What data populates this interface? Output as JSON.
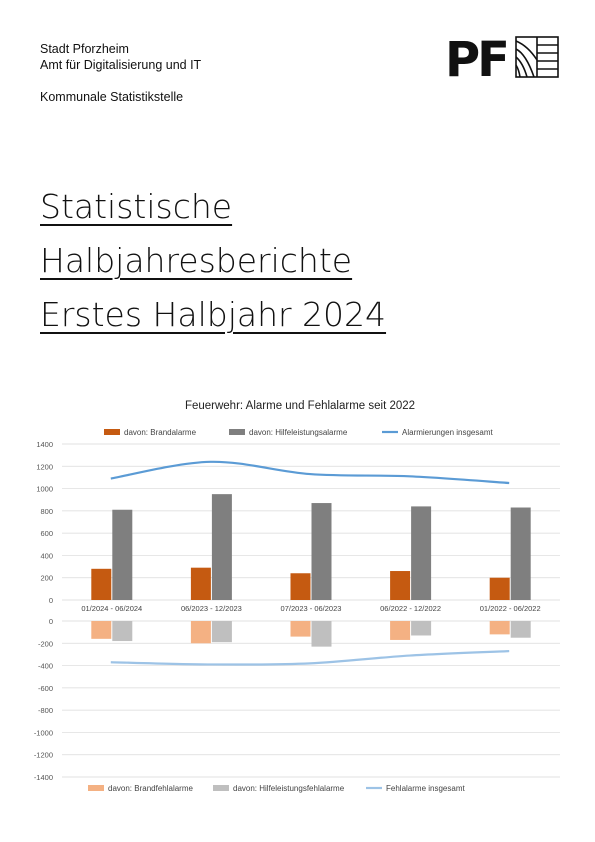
{
  "header": {
    "city": "Stadt Pforzheim",
    "office": "Amt für Digitalisierung und IT",
    "department": "Kommunale Statistikstelle"
  },
  "logo": {
    "text": "PF"
  },
  "title": {
    "line1": "Statistische",
    "line2": "Halbjahresberichte",
    "line3": "Erstes Halbjahr 2024"
  },
  "chart_data": {
    "type": "bar",
    "title": "Feuerwehr: Alarme und Fehlalarme seit 2022",
    "categories": [
      "01/2024 - 06/2024",
      "06/2023 - 12/2023",
      "07/2023 - 06/2023",
      "06/2022 - 12/2022",
      "01/2022 - 06/2022"
    ],
    "ylim": [
      -1400,
      1400
    ],
    "yticks": [
      "1400",
      "1200",
      "1000",
      "800",
      "600",
      "400",
      "200",
      "0",
      "0",
      "-200",
      "-400",
      "-600",
      "-800",
      "-1000",
      "-1200",
      "-1400"
    ],
    "series": [
      {
        "name": "davon: Brandalarme",
        "kind": "bar",
        "color": "#c55a11",
        "values": [
          280,
          290,
          240,
          260,
          200
        ]
      },
      {
        "name": "davon: Hilfeleistungsalarme",
        "kind": "bar",
        "color": "#7f7f7f",
        "values": [
          810,
          950,
          870,
          840,
          830
        ]
      },
      {
        "name": "Alarmierungen insgesamt",
        "kind": "line",
        "color": "#5b9bd5",
        "values": [
          1090,
          1240,
          1130,
          1110,
          1050
        ]
      },
      {
        "name": "davon: Brandfehlalarme",
        "kind": "bar",
        "color": "#f4b183",
        "values": [
          -160,
          -200,
          -140,
          -170,
          -120
        ]
      },
      {
        "name": "davon: Hilfeleistungsfehlalarme",
        "kind": "bar",
        "color": "#bfbfbf",
        "values": [
          -180,
          -190,
          -230,
          -130,
          -150
        ]
      },
      {
        "name": "Fehlalarme insgesamt",
        "kind": "line",
        "color": "#9dc3e6",
        "values": [
          -370,
          -390,
          -380,
          -310,
          -270
        ]
      }
    ],
    "grid": true,
    "legend": "top and bottom"
  }
}
